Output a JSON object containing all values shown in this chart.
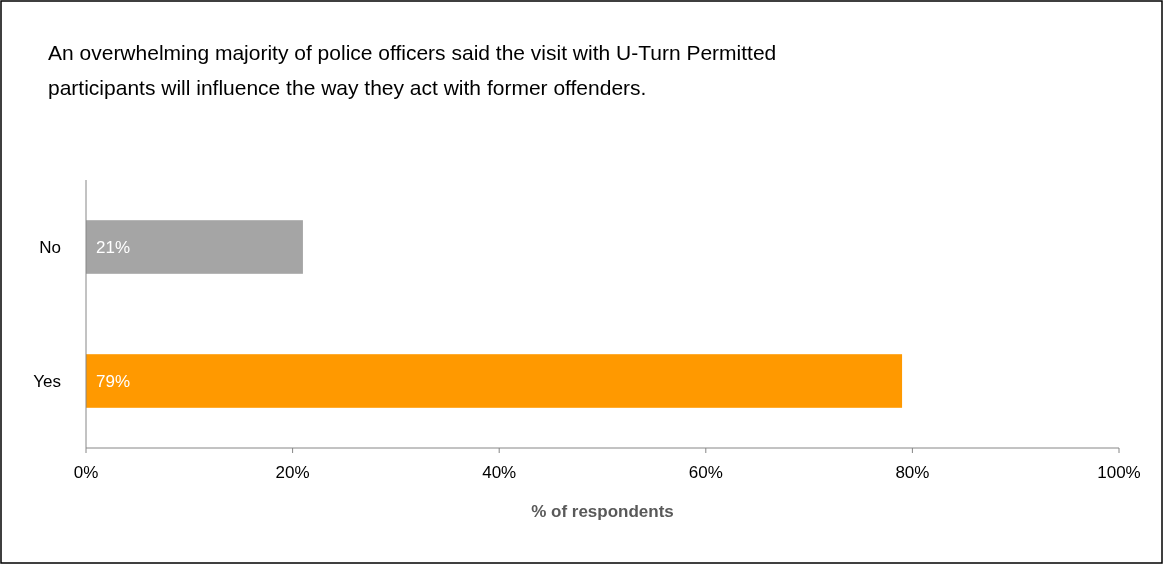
{
  "chart_data": {
    "type": "bar",
    "orientation": "horizontal",
    "title": "An overwhelming majority of police officers said the visit with U-Turn Permitted  participants will influence the way they act with former offenders.",
    "categories": [
      "No",
      "Yes"
    ],
    "values": [
      21,
      79
    ],
    "colors": [
      "#a5a5a5",
      "#ff9900"
    ],
    "value_labels": [
      "21%",
      "79%"
    ],
    "xlim": [
      0,
      100
    ],
    "xticks": [
      {
        "value": 0,
        "label": "0%"
      },
      {
        "value": 20,
        "label": "20%"
      },
      {
        "value": 40,
        "label": "40%"
      },
      {
        "value": 60,
        "label": "60%"
      },
      {
        "value": 80,
        "label": "80%"
      },
      {
        "value": 100,
        "label": "100%"
      }
    ],
    "xlabel": "% of respondents",
    "grid": false
  }
}
